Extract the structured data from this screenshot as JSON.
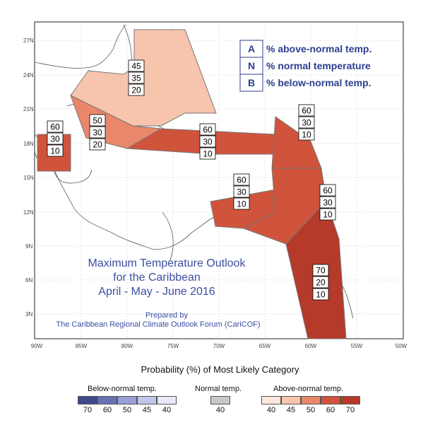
{
  "axes": {
    "lat_ticks": [
      "27N",
      "24N",
      "21N",
      "18N",
      "15N",
      "12N",
      "9N",
      "6N",
      "3N"
    ],
    "lon_ticks": [
      "90W",
      "85W",
      "80W",
      "75W",
      "70W",
      "65W",
      "60W",
      "55W",
      "50W"
    ]
  },
  "key": {
    "rows": [
      {
        "letter": "A",
        "text": "% above-normal temp."
      },
      {
        "letter": "N",
        "text": "% normal temperature"
      },
      {
        "letter": "B",
        "text": "% below-normal temp."
      }
    ]
  },
  "title": {
    "line1": "Maximum Temperature Outlook",
    "line2": "for the Caribbean",
    "line3": "April - May - June 2016",
    "prepared_by": "Prepared by",
    "organization": "The Caribbean Regional Climate Outlook Forum (CariCOF)"
  },
  "regions": [
    {
      "id": "bahamas",
      "A": "45",
      "N": "35",
      "B": "20",
      "color": "#f7c4ad"
    },
    {
      "id": "cuba-jamaica",
      "A": "50",
      "N": "30",
      "B": "20",
      "color": "#e8876a"
    },
    {
      "id": "belize",
      "A": "60",
      "N": "30",
      "B": "10",
      "color": "#d0533c"
    },
    {
      "id": "greater-antilles-east",
      "A": "60",
      "N": "30",
      "B": "10",
      "color": "#d0533c"
    },
    {
      "id": "lesser-antilles-north",
      "A": "60",
      "N": "30",
      "B": "10",
      "color": "#d0533c"
    },
    {
      "id": "caribbean-south",
      "A": "60",
      "N": "30",
      "B": "10",
      "color": "#d0533c"
    },
    {
      "id": "lesser-antilles-south",
      "A": "60",
      "N": "30",
      "B": "10",
      "color": "#d0533c"
    },
    {
      "id": "guianas",
      "A": "70",
      "N": "20",
      "B": "10",
      "color": "#b53a2a"
    }
  ],
  "legend": {
    "title": "Probability (%) of Most Likely Category",
    "below": {
      "label": "Below-normal temp.",
      "values": [
        "70",
        "60",
        "50",
        "45",
        "40"
      ],
      "colors": [
        "#3e4a8c",
        "#6673b8",
        "#9a9fd6",
        "#c2c5ec",
        "#e8e9f8"
      ]
    },
    "normal": {
      "label": "Normal temp.",
      "values": [
        "40"
      ],
      "colors": [
        "#c8c8c8"
      ]
    },
    "above": {
      "label": "Above-normal temp.",
      "values": [
        "40",
        "45",
        "50",
        "60",
        "70"
      ],
      "colors": [
        "#fde6dc",
        "#f7c4ad",
        "#e8876a",
        "#d0533c",
        "#b53a2a"
      ]
    }
  }
}
